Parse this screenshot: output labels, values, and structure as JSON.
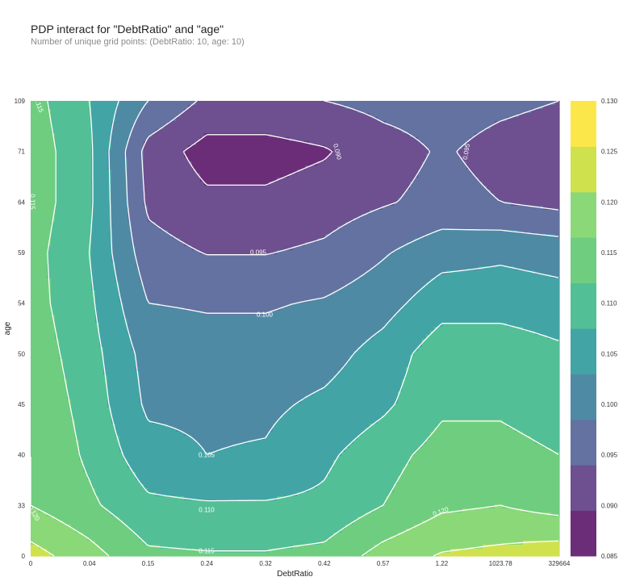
{
  "header": {
    "title": "PDP interact for \"DebtRatio\" and \"age\"",
    "subtitle": "Number of unique grid points: (DebtRatio: 10, age: 10)"
  },
  "chart_data": {
    "type": "heatmap",
    "subtype": "filled-contour",
    "title": "PDP interact for \"DebtRatio\" and \"age\"",
    "subtitle": "Number of unique grid points: (DebtRatio: 10, age: 10)",
    "xlabel": "DebtRatio",
    "ylabel": "age",
    "x_ticks": [
      "0",
      "0.04",
      "0.15",
      "0.24",
      "0.32",
      "0.42",
      "0.57",
      "1.22",
      "1023.78",
      "329664"
    ],
    "y_ticks": [
      "0",
      "33",
      "40",
      "45",
      "50",
      "54",
      "59",
      "64",
      "71",
      "109"
    ],
    "z": [
      [
        0.127,
        0.122,
        0.116,
        0.1155,
        0.1155,
        0.1165,
        0.122,
        0.1255,
        0.1265,
        0.128
      ],
      [
        0.12,
        0.116,
        0.111,
        0.1105,
        0.1105,
        0.111,
        0.115,
        0.119,
        0.12,
        0.118
      ],
      [
        0.12,
        0.114,
        0.107,
        0.105,
        0.1055,
        0.109,
        0.113,
        0.117,
        0.117,
        0.115
      ],
      [
        0.119,
        0.113,
        0.104,
        0.104,
        0.104,
        0.106,
        0.109,
        0.114,
        0.114,
        0.112
      ],
      [
        0.118,
        0.112,
        0.103,
        0.102,
        0.102,
        0.103,
        0.107,
        0.113,
        0.113,
        0.111
      ],
      [
        0.117,
        0.111,
        0.1,
        0.0995,
        0.0995,
        0.1005,
        0.103,
        0.108,
        0.108,
        0.107
      ],
      [
        0.117,
        0.11,
        0.097,
        0.0948,
        0.0948,
        0.096,
        0.0995,
        0.103,
        0.104,
        0.103
      ],
      [
        0.118,
        0.111,
        0.094,
        0.091,
        0.091,
        0.0925,
        0.0945,
        0.0965,
        0.095,
        0.0935
      ],
      [
        0.118,
        0.111,
        0.093,
        0.088,
        0.088,
        0.0895,
        0.093,
        0.0955,
        0.0935,
        0.0925
      ],
      [
        0.117,
        0.11,
        0.1,
        0.094,
        0.094,
        0.095,
        0.0965,
        0.097,
        0.096,
        0.095
      ]
    ],
    "levels": [
      0.085,
      0.09,
      0.095,
      0.1,
      0.105,
      0.11,
      0.115,
      0.12,
      0.125,
      0.13
    ],
    "colorbar_ticks": [
      "0.085",
      "0.090",
      "0.095",
      "0.100",
      "0.105",
      "0.110",
      "0.115",
      "0.120",
      "0.125",
      "0.130"
    ],
    "contour_labels": [
      "0.090",
      "0.095",
      "0.095",
      "0.100",
      "0.105",
      "0.110",
      "0.115",
      "0.115",
      "0.115",
      "0.120",
      "0.120"
    ],
    "colors": [
      "#6b2d78",
      "#6e4f8f",
      "#6372a0",
      "#4f8aa5",
      "#43a4a6",
      "#53bf96",
      "#6fcd7f",
      "#8bd879",
      "#cfe24d",
      "#fce74a"
    ],
    "colormap": "viridis"
  }
}
